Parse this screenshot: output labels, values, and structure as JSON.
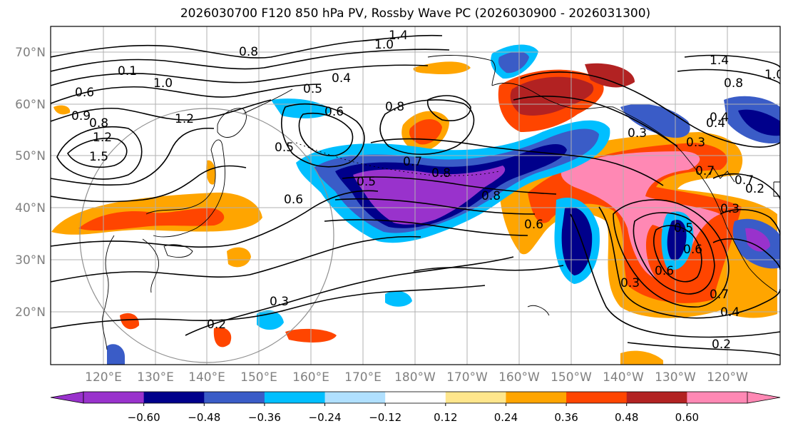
{
  "title": "2026030700 F120 850 hPa PV, Rossby Wave PC (2026030900 - 2026031300)",
  "colors": {
    "background": "#ffffff",
    "coast": "#000000",
    "grid": "#b0b0b0",
    "axis_label": "#808080",
    "contour": "#000000",
    "circle": "#909090"
  },
  "axes": {
    "lat_labels": [
      "70°N",
      "60°N",
      "50°N",
      "40°N",
      "30°N",
      "20°N"
    ],
    "lon_labels": [
      "120°E",
      "130°E",
      "140°E",
      "150°E",
      "160°E",
      "170°E",
      "180°W",
      "170°W",
      "160°W",
      "150°W",
      "140°W",
      "130°W",
      "120°W"
    ]
  },
  "colorbar": {
    "colors": [
      "#9932cc",
      "#00008b",
      "#3a5cc7",
      "#00bfff",
      "#b0e0ff",
      "#ffffff",
      "#ffe68c",
      "#ffa500",
      "#ff4500",
      "#b22222",
      "#ff88b4"
    ],
    "tick_labels": [
      "−0.60",
      "−0.48",
      "−0.36",
      "−0.24",
      "−0.12",
      "0.12",
      "0.24",
      "0.36",
      "0.48",
      "0.60"
    ],
    "extend": "both"
  },
  "contour_labels": [
    "1.4",
    "1.0",
    "0.8",
    "0.4",
    "0.5",
    "0.6",
    "0.1",
    "0.8",
    "0.5",
    "0.6",
    "1.0",
    "1.2",
    "0.8",
    "0.7",
    "0.8",
    "0.6",
    "0.8",
    "0.5",
    "0.6",
    "0.7",
    "0.4",
    "0.3",
    "0.2",
    "0.8",
    "1.4",
    "1.0",
    "0.4",
    "0.3",
    "0.3",
    "0.7",
    "0.5",
    "0.6",
    "0.6",
    "0.3",
    "0.7",
    "0.4",
    "0.2",
    "0.3",
    "0.2",
    "0.9",
    "1.2",
    "1.5"
  ]
}
